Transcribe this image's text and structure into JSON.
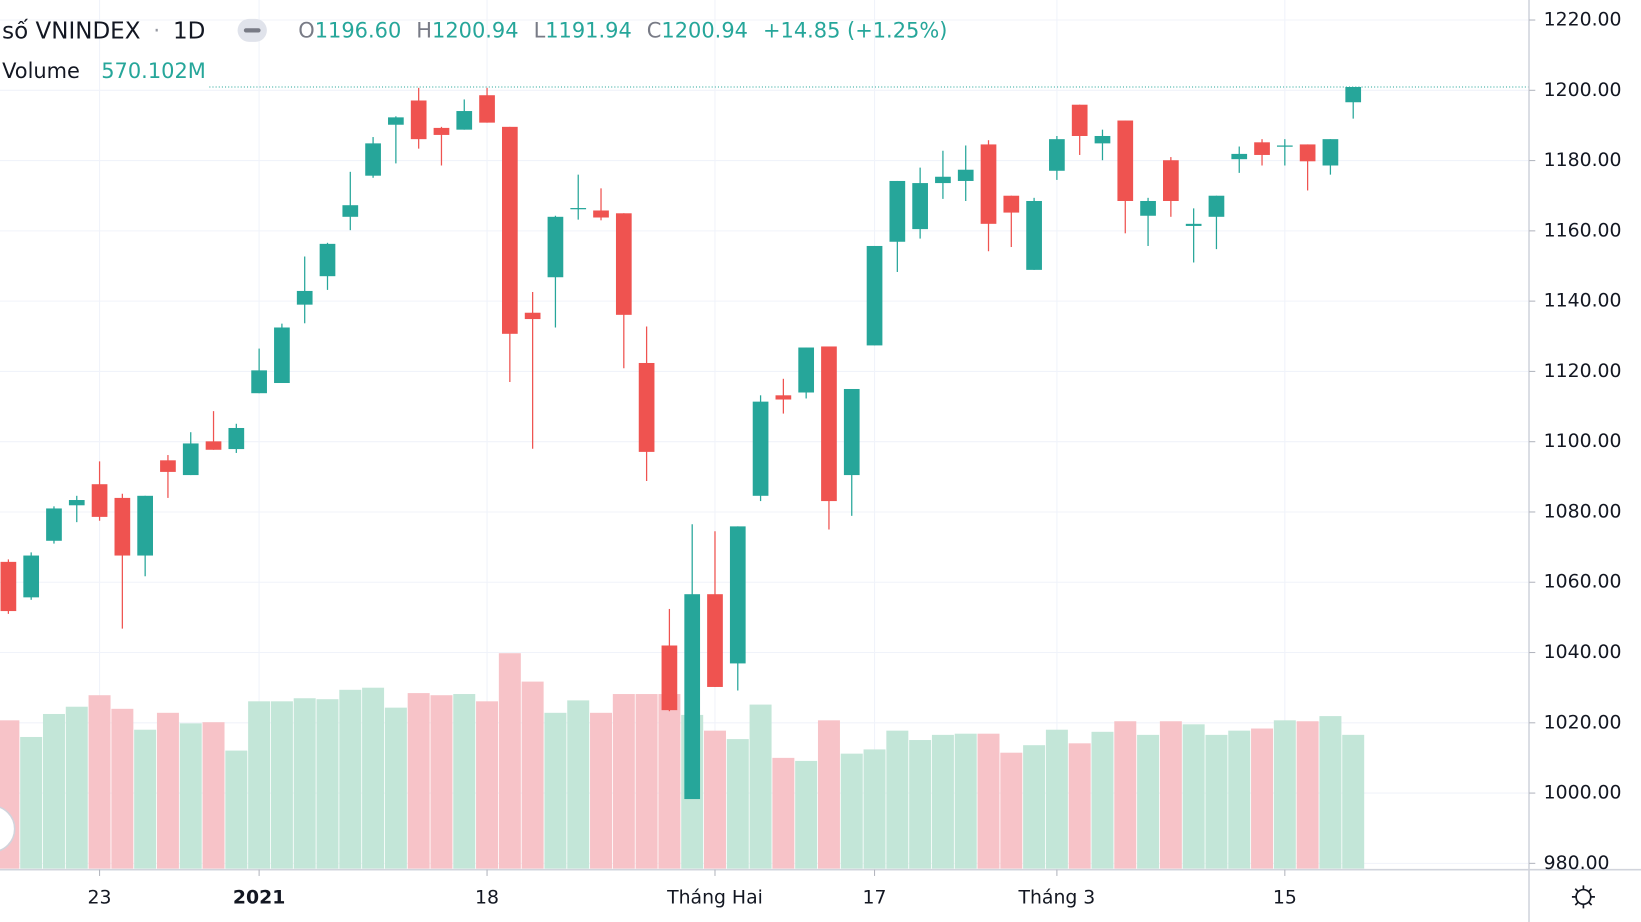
{
  "chart_data": {
    "type": "candlestick",
    "title": "số VNINDEX",
    "separator": "·",
    "interval": "1D",
    "header": [
      {
        "label": "O",
        "value": "1196.60"
      },
      {
        "label": "H",
        "value": "1200.94"
      },
      {
        "label": "L",
        "value": "1191.94"
      },
      {
        "label": "C",
        "value": "1200.94"
      }
    ],
    "change": "+14.85 (+1.25%)",
    "categories": [
      null,
      null,
      null,
      null,
      "23",
      null,
      null,
      null,
      null,
      null,
      null,
      "2021",
      null,
      null,
      null,
      null,
      null,
      null,
      null,
      null,
      null,
      "18",
      null,
      null,
      null,
      null,
      null,
      null,
      null,
      null,
      null,
      "Tháng Hai",
      null,
      null,
      null,
      null,
      null,
      null,
      "17",
      null,
      null,
      null,
      null,
      null,
      null,
      null,
      "Tháng 3",
      null,
      null,
      null,
      null,
      null,
      null,
      null,
      null,
      null,
      "15",
      null,
      null,
      null
    ],
    "open": [
      1065.8,
      1055.7,
      1071.8,
      1081.9,
      1087.9,
      1084.0,
      1067.6,
      1094.7,
      1090.5,
      1100.1,
      1097.9,
      1113.8,
      1116.7,
      1139.0,
      1147.1,
      1164.0,
      1175.7,
      1190.2,
      1197.1,
      1189.3,
      1188.8,
      1198.6,
      1189.6,
      1136.7,
      1146.8,
      1166.3,
      1165.8,
      1165.0,
      1122.4,
      1042.0,
      998.3,
      1056.6,
      1036.9,
      1084.6,
      1113.2,
      1114.0,
      1127.1,
      1090.5,
      1127.4,
      1156.9,
      1160.5,
      1173.6,
      1174.2,
      1184.6,
      1170.0,
      1148.9,
      1177.1,
      1195.9,
      1184.9,
      1191.4,
      1164.3,
      1180.1,
      1161.4,
      1164.0,
      1180.4,
      1185.2,
      1184.0,
      1184.6,
      1178.6,
      1196.6
    ],
    "high": [
      1066.5,
      1068.5,
      1081.6,
      1084.6,
      1094.4,
      1085.2,
      1084.6,
      1096.2,
      1102.7,
      1108.7,
      1105.1,
      1126.5,
      1133.6,
      1152.7,
      1156.6,
      1176.8,
      1186.7,
      1192.6,
      1200.7,
      1189.6,
      1197.4,
      1200.7,
      1189.6,
      1142.6,
      1164.3,
      1176.0,
      1172.1,
      1165.0,
      1132.8,
      1052.4,
      1076.5,
      1074.5,
      1075.9,
      1113.2,
      1117.9,
      1126.8,
      1127.1,
      1115.0,
      1155.7,
      1174.2,
      1178.0,
      1182.8,
      1184.3,
      1185.8,
      1170.0,
      1169.4,
      1187.0,
      1195.9,
      1188.8,
      1191.4,
      1169.4,
      1181.0,
      1166.4,
      1170.0,
      1184.0,
      1186.1,
      1186.1,
      1184.6,
      1186.1,
      1200.94
    ],
    "low": [
      1051.0,
      1055.0,
      1071.0,
      1077.1,
      1077.5,
      1046.8,
      1061.7,
      1084.0,
      1090.5,
      1097.7,
      1096.8,
      1113.8,
      1116.7,
      1133.7,
      1143.2,
      1160.2,
      1175.1,
      1179.2,
      1183.4,
      1178.6,
      1188.8,
      1190.8,
      1117.0,
      1098.0,
      1132.5,
      1163.2,
      1163.0,
      1120.9,
      1088.8,
      1023.3,
      998.3,
      1030.2,
      1029.2,
      1083.1,
      1108.0,
      1112.3,
      1075.0,
      1078.9,
      1127.4,
      1148.3,
      1157.8,
      1169.1,
      1168.5,
      1154.2,
      1155.4,
      1148.9,
      1174.5,
      1181.6,
      1180.1,
      1159.3,
      1155.7,
      1164.0,
      1151.0,
      1154.8,
      1176.5,
      1178.6,
      1178.6,
      1171.5,
      1176.0,
      1191.94
    ],
    "close": [
      1051.8,
      1067.6,
      1081.0,
      1083.4,
      1078.6,
      1067.6,
      1084.6,
      1091.4,
      1099.5,
      1097.7,
      1103.9,
      1120.3,
      1132.5,
      1142.9,
      1156.3,
      1167.3,
      1184.9,
      1192.3,
      1186.1,
      1187.3,
      1194.1,
      1190.8,
      1130.7,
      1134.9,
      1164.0,
      1166.5,
      1163.8,
      1136.1,
      1097.1,
      1023.6,
      1056.6,
      1030.2,
      1075.9,
      1111.4,
      1112.0,
      1126.8,
      1083.1,
      1115.0,
      1155.7,
      1174.2,
      1173.6,
      1175.4,
      1177.4,
      1162.0,
      1165.2,
      1168.5,
      1186.1,
      1187.0,
      1187.0,
      1168.5,
      1168.5,
      1168.5,
      1162.0,
      1170.0,
      1181.9,
      1181.6,
      1184.3,
      1179.8,
      1186.1,
      1200.94
    ],
    "volume": {
      "name": "Volume",
      "values": [
        632,
        561,
        659,
        690,
        739,
        681,
        592,
        664,
        619,
        624,
        503,
        713,
        713,
        726,
        722,
        762,
        771,
        686,
        748,
        739,
        744,
        713,
        918,
        797,
        664,
        717,
        664,
        744,
        744,
        744,
        655,
        588,
        552,
        699,
        472,
        459,
        632,
        490,
        508,
        588,
        548,
        570,
        575,
        575,
        494,
        526,
        592,
        534,
        583,
        628,
        570,
        628,
        615,
        570,
        588,
        597,
        632,
        628,
        650,
        570.102
      ],
      "last_label": "570.102M"
    },
    "ylim": [
      978.5,
      1225.7
    ],
    "yticks": [
      {
        "value": 980,
        "label": "980.00"
      },
      {
        "value": 1000,
        "label": "1000.00"
      },
      {
        "value": 1020,
        "label": "1020.00"
      },
      {
        "value": 1040,
        "label": "1040.00"
      },
      {
        "value": 1060,
        "label": "1060.00"
      },
      {
        "value": 1080,
        "label": "1080.00"
      },
      {
        "value": 1100,
        "label": "1100.00"
      },
      {
        "value": 1120,
        "label": "1120.00"
      },
      {
        "value": 1140,
        "label": "1140.00"
      },
      {
        "value": 1160,
        "label": "1160.00"
      },
      {
        "value": 1180,
        "label": "1180.00"
      },
      {
        "value": 1200,
        "label": "1200.00"
      },
      {
        "value": 1220,
        "label": "1220.00"
      }
    ],
    "grid": true,
    "up_color": "#26a69a",
    "down_color": "#ef5350",
    "volume_up_color": "#c3e6d8",
    "volume_down_color": "#f7c3c8"
  }
}
